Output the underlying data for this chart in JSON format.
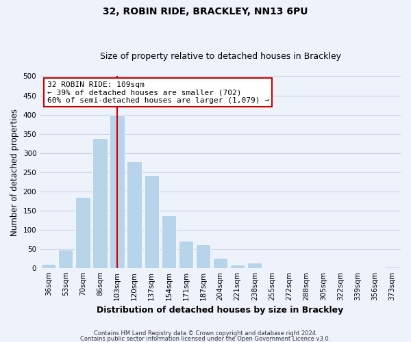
{
  "title": "32, ROBIN RIDE, BRACKLEY, NN13 6PU",
  "subtitle": "Size of property relative to detached houses in Brackley",
  "xlabel": "Distribution of detached houses by size in Brackley",
  "ylabel": "Number of detached properties",
  "categories": [
    "36sqm",
    "53sqm",
    "70sqm",
    "86sqm",
    "103sqm",
    "120sqm",
    "137sqm",
    "154sqm",
    "171sqm",
    "187sqm",
    "204sqm",
    "221sqm",
    "238sqm",
    "255sqm",
    "272sqm",
    "288sqm",
    "305sqm",
    "322sqm",
    "339sqm",
    "356sqm",
    "373sqm"
  ],
  "values": [
    10,
    47,
    185,
    338,
    400,
    278,
    243,
    137,
    70,
    62,
    26,
    8,
    13,
    1,
    0,
    0,
    0,
    0,
    0,
    0,
    3
  ],
  "bar_color": "#b8d4ea",
  "vline_color": "#cc0000",
  "vline_x": 4.0,
  "annotation_title": "32 ROBIN RIDE: 109sqm",
  "annotation_line1": "← 39% of detached houses are smaller (702)",
  "annotation_line2": "60% of semi-detached houses are larger (1,079) →",
  "annotation_box_facecolor": "#ffffff",
  "annotation_box_edgecolor": "#cc0000",
  "ylim": [
    0,
    500
  ],
  "yticks": [
    0,
    50,
    100,
    150,
    200,
    250,
    300,
    350,
    400,
    450,
    500
  ],
  "grid_color": "#c8d4e8",
  "footer1": "Contains HM Land Registry data © Crown copyright and database right 2024.",
  "footer2": "Contains public sector information licensed under the Open Government Licence v3.0.",
  "background_color": "#eef2fa",
  "title_fontsize": 10,
  "subtitle_fontsize": 9,
  "axis_label_fontsize": 8.5,
  "tick_fontsize": 7.5,
  "annotation_fontsize": 8,
  "footer_fontsize": 6
}
